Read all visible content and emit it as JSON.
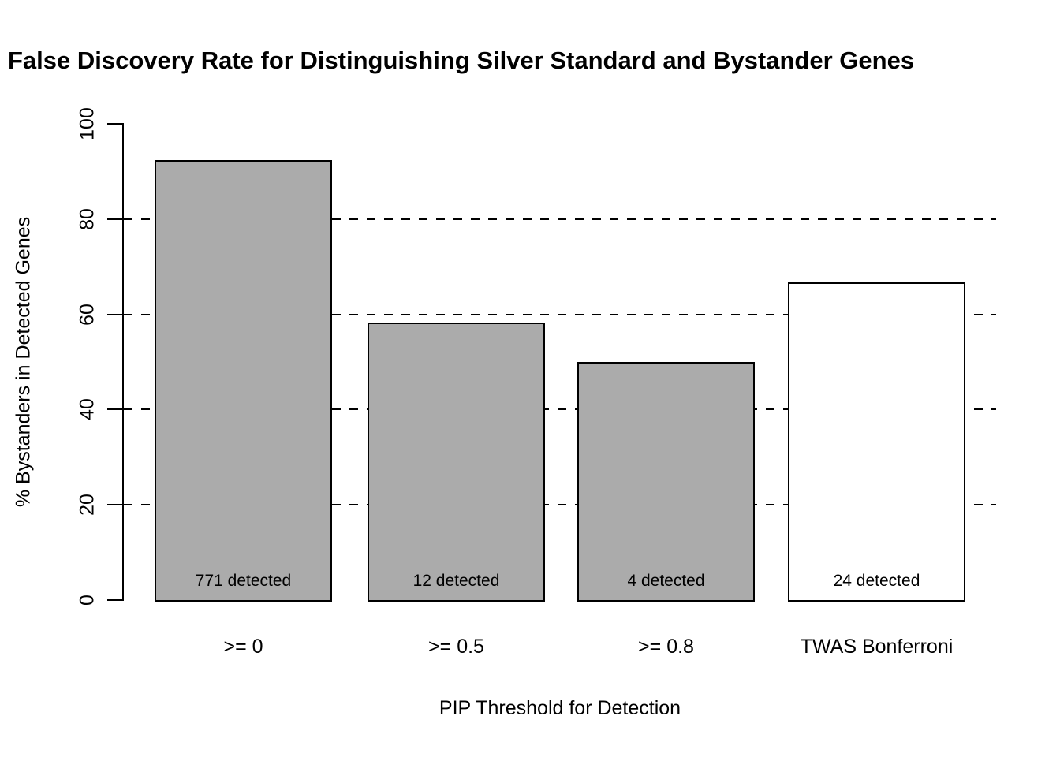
{
  "chart_data": {
    "type": "bar",
    "title": "False Discovery Rate for Distinguishing Silver Standard and Bystander Genes",
    "title_visible_clipped": "False Discovery Rate for Distinguishing Silver Standard and Bystander Ge",
    "xlabel": "PIP Threshold for Detection",
    "ylabel": "% Bystanders in Detected Genes",
    "categories": [
      ">= 0",
      ">= 0.5",
      ">= 0.8",
      "TWAS Bonferroni"
    ],
    "values": [
      92.4,
      58.3,
      50,
      66.7
    ],
    "bar_labels": [
      "771 detected",
      "12 detected",
      "4 detected",
      "24 detected"
    ],
    "detected_counts": [
      771,
      12,
      4,
      24
    ],
    "bar_colors": [
      "#ABABAB",
      "#ABABAB",
      "#ABABAB",
      "#FFFFFF"
    ],
    "bar_border_color": "#000000",
    "ylim": [
      0,
      100
    ],
    "yticks": [
      0,
      20,
      40,
      60,
      80,
      100
    ],
    "gridlines_y": [
      20,
      40,
      60,
      80
    ],
    "grid_style": "dashed",
    "grid_on": true,
    "legend": "none",
    "axis_color": "#000000",
    "background_color": "#FFFFFF"
  }
}
